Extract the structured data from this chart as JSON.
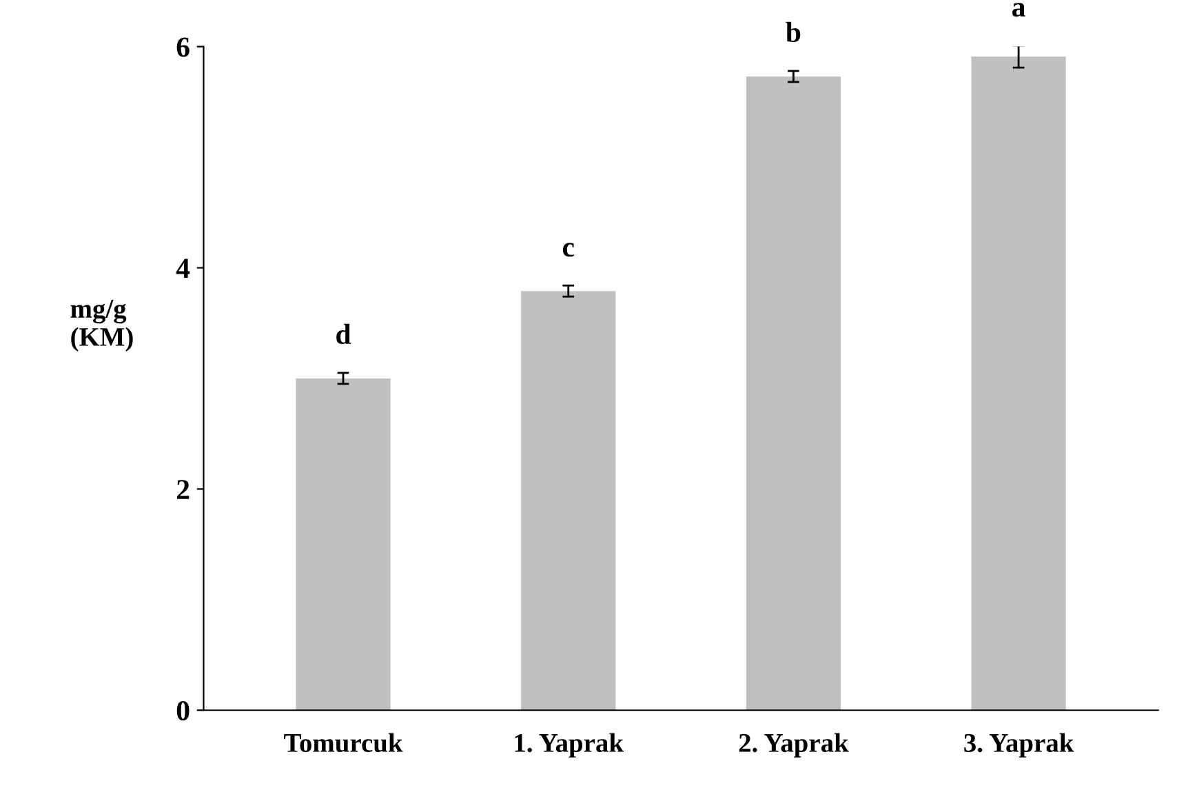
{
  "chart_data": {
    "type": "bar",
    "ylabel": "mg/g\n(KM)",
    "categories": [
      "Tomurcuk",
      "1. Yaprak",
      "2. Yaprak",
      "3. Yaprak"
    ],
    "values": [
      3.0,
      3.79,
      5.73,
      5.91
    ],
    "errors": [
      0.05,
      0.05,
      0.05,
      0.1
    ],
    "color": "#c0c0c0",
    "ylim": [
      0,
      6
    ],
    "yticks": [
      0,
      2,
      4,
      6
    ],
    "grid": false,
    "annotations": [
      "d",
      "c",
      "b",
      "a"
    ]
  }
}
